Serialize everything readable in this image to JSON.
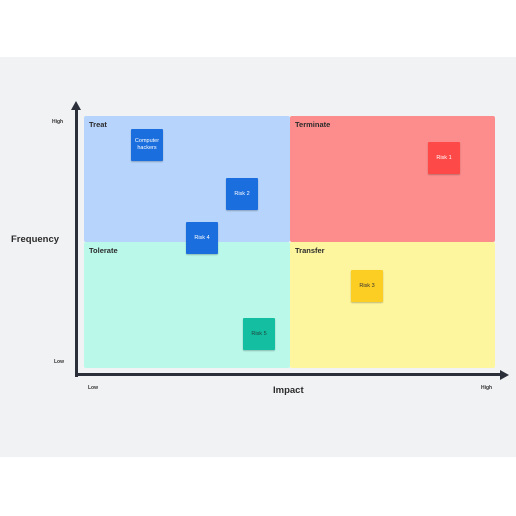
{
  "colors": {
    "background": "#f1f2f4",
    "treat": "#b7d5fc",
    "terminate": "#fd8d8c",
    "tolerate": "#baf9ea",
    "transfer": "#fef69e",
    "axis": "#2a2f3a"
  },
  "quadrants": {
    "treat": "Treat",
    "terminate": "Terminate",
    "tolerate": "Tolerate",
    "transfer": "Transfer"
  },
  "notes": {
    "computer_hackers": {
      "text": "Computer hackers",
      "color": "#1a6ede",
      "text_color": "#ffffff"
    },
    "risk1": {
      "text": "Risk 1",
      "color": "#fd4a48",
      "text_color": "#ffffff"
    },
    "risk2": {
      "text": "Risk 2",
      "color": "#1a6ede",
      "text_color": "#ffffff"
    },
    "risk3": {
      "text": "Risk 3",
      "color": "#fccd23",
      "text_color": "#333333"
    },
    "risk4": {
      "text": "Risk 4",
      "color": "#1a6ede",
      "text_color": "#ffffff"
    },
    "risk5": {
      "text": "Risk 5",
      "color": "#13bfa0",
      "text_color": "#1f3f3a"
    }
  },
  "axes": {
    "y_title": "Frequency",
    "y_high": "High",
    "y_low": "Low",
    "x_title": "Impact",
    "x_low": "Low",
    "x_high": "High"
  }
}
